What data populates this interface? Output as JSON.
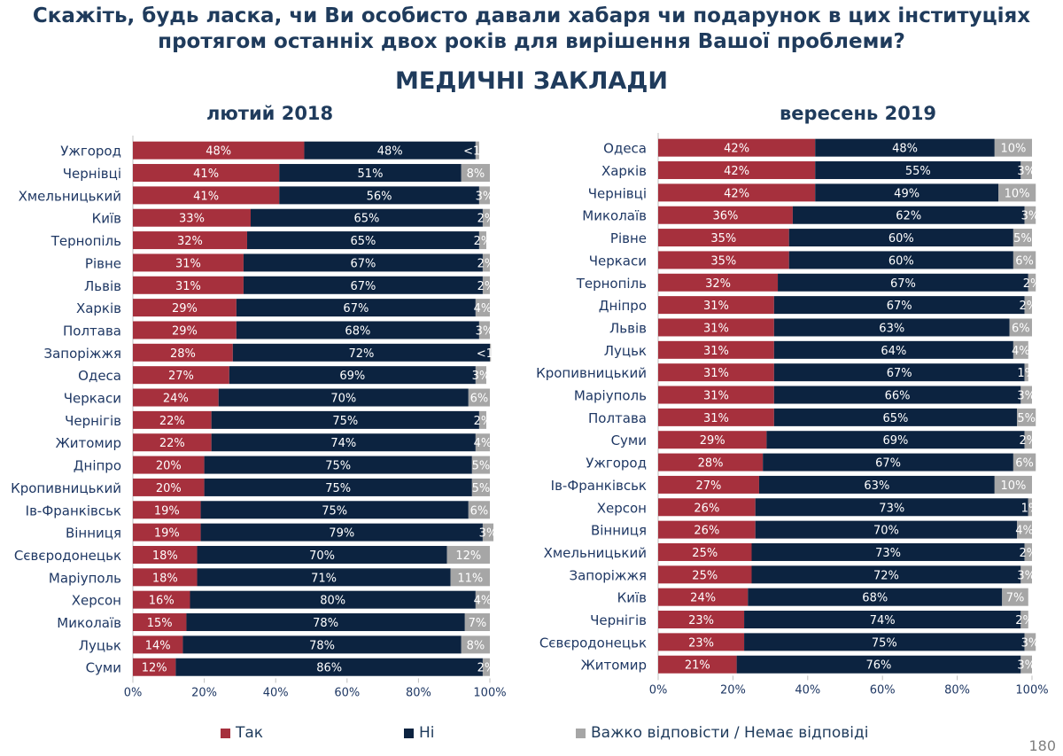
{
  "title": {
    "line1": "Скажіть, будь ласка, чи Ви особисто давали хабаря чи подарунок в цих інституціях",
    "line2": "протягом останніх двох років для вирішення Вашої проблеми?"
  },
  "subtitle": "МЕДИЧНІ ЗАКЛАДИ",
  "page_number": "180",
  "legend": {
    "yes": "Так",
    "no": "Ні",
    "hard": "Важко відповісти / Немає відповіді"
  },
  "colors": {
    "yes": "#a6303d",
    "no": "#0c2340",
    "hard": "#a6a6a6"
  },
  "chart_data": [
    {
      "type": "bar",
      "orientation": "horizontal",
      "stacked": true,
      "title": "лютий 2018",
      "xlim": [
        0,
        100
      ],
      "xticks": [
        "0%",
        "20%",
        "40%",
        "60%",
        "80%",
        "100%"
      ],
      "categories": [
        "Ужгород",
        "Чернівці",
        "Хмельницький",
        "Київ",
        "Тернопіль",
        "Рівне",
        "Львів",
        "Харків",
        "Полтава",
        "Запоріжжя",
        "Одеса",
        "Черкаси",
        "Чернігів",
        "Житомир",
        "Дніпро",
        "Кропивницький",
        "Ів-Франківськ",
        "Вінниця",
        "Сєвєродонецьк",
        "Маріуполь",
        "Херсон",
        "Миколаїв",
        "Луцьк",
        "Суми"
      ],
      "series": [
        {
          "name": "Так",
          "key": "yes",
          "values": [
            48,
            41,
            41,
            33,
            32,
            31,
            31,
            29,
            29,
            28,
            27,
            24,
            22,
            22,
            20,
            20,
            19,
            19,
            18,
            18,
            16,
            15,
            14,
            12
          ],
          "labels": [
            "48%",
            "41%",
            "41%",
            "33%",
            "32%",
            "31%",
            "31%",
            "29%",
            "29%",
            "28%",
            "27%",
            "24%",
            "22%",
            "22%",
            "20%",
            "20%",
            "19%",
            "19%",
            "18%",
            "18%",
            "16%",
            "15%",
            "14%",
            "12%"
          ]
        },
        {
          "name": "Ні",
          "key": "no",
          "values": [
            48,
            51,
            56,
            65,
            65,
            67,
            67,
            67,
            68,
            72,
            69,
            70,
            75,
            74,
            75,
            75,
            75,
            79,
            70,
            71,
            80,
            78,
            78,
            86
          ],
          "labels": [
            "48%",
            "51%",
            "56%",
            "65%",
            "65%",
            "67%",
            "67%",
            "67%",
            "68%",
            "72%",
            "69%",
            "70%",
            "75%",
            "74%",
            "75%",
            "75%",
            "75%",
            "79%",
            "70%",
            "71%",
            "80%",
            "78%",
            "78%",
            "86%"
          ]
        },
        {
          "name": "Важко відповісти / Немає відповіді",
          "key": "hard",
          "values": [
            1,
            8,
            3,
            2,
            2,
            2,
            2,
            4,
            3,
            0.3,
            3,
            6,
            2,
            4,
            5,
            5,
            6,
            3,
            12,
            11,
            4,
            7,
            8,
            2
          ],
          "labels": [
            "<1%",
            "8%",
            "3%",
            "2%",
            "2%",
            "2%",
            "2%",
            "4%",
            "3%",
            "<1%",
            "3%",
            "6%",
            "2%",
            "4%",
            "5%",
            "5%",
            "6%",
            "3%",
            "12%",
            "11%",
            "4%",
            "7%",
            "8%",
            "2%"
          ]
        }
      ]
    },
    {
      "type": "bar",
      "orientation": "horizontal",
      "stacked": true,
      "title": "вересень 2019",
      "xlim": [
        0,
        100
      ],
      "xticks": [
        "0%",
        "20%",
        "40%",
        "60%",
        "80%",
        "100%"
      ],
      "categories": [
        "Одеса",
        "Харків",
        "Чернівці",
        "Миколаїв",
        "Рівне",
        "Черкаси",
        "Тернопіль",
        "Дніпро",
        "Львів",
        "Луцьк",
        "Кропивницький",
        "Маріуполь",
        "Полтава",
        "Суми",
        "Ужгород",
        "Ів-Франківськ",
        "Херсон",
        "Вінниця",
        "Хмельницький",
        "Запоріжжя",
        "Київ",
        "Чернігів",
        "Сєвєродонецьк",
        "Житомир"
      ],
      "series": [
        {
          "name": "Так",
          "key": "yes",
          "values": [
            42,
            42,
            42,
            36,
            35,
            35,
            32,
            31,
            31,
            31,
            31,
            31,
            31,
            29,
            28,
            27,
            26,
            26,
            25,
            25,
            24,
            23,
            23,
            21
          ],
          "labels": [
            "42%",
            "42%",
            "42%",
            "36%",
            "35%",
            "35%",
            "32%",
            "31%",
            "31%",
            "31%",
            "31%",
            "31%",
            "31%",
            "29%",
            "28%",
            "27%",
            "26%",
            "26%",
            "25%",
            "25%",
            "24%",
            "23%",
            "23%",
            "21%"
          ]
        },
        {
          "name": "Ні",
          "key": "no",
          "values": [
            48,
            55,
            49,
            62,
            60,
            60,
            67,
            67,
            63,
            64,
            67,
            66,
            65,
            69,
            67,
            63,
            73,
            70,
            73,
            72,
            68,
            74,
            75,
            76
          ],
          "labels": [
            "48%",
            "55%",
            "49%",
            "62%",
            "60%",
            "60%",
            "67%",
            "67%",
            "63%",
            "64%",
            "67%",
            "66%",
            "65%",
            "69%",
            "67%",
            "63%",
            "73%",
            "70%",
            "73%",
            "72%",
            "68%",
            "74%",
            "75%",
            "76%"
          ]
        },
        {
          "name": "Важко відповісти / Немає відповіді",
          "key": "hard",
          "values": [
            10,
            3,
            10,
            3,
            5,
            6,
            2,
            2,
            6,
            4,
            1,
            3,
            5,
            2,
            6,
            10,
            1,
            4,
            2,
            3,
            7,
            2,
            3,
            3
          ],
          "labels": [
            "10%",
            "3%",
            "10%",
            "3%",
            "5%",
            "6%",
            "2%",
            "2%",
            "6%",
            "4%",
            "1%",
            "3%",
            "5%",
            "2%",
            "6%",
            "10%",
            "1%",
            "4%",
            "2%",
            "3%",
            "7%",
            "2%",
            "3%",
            "3%"
          ]
        }
      ]
    }
  ]
}
